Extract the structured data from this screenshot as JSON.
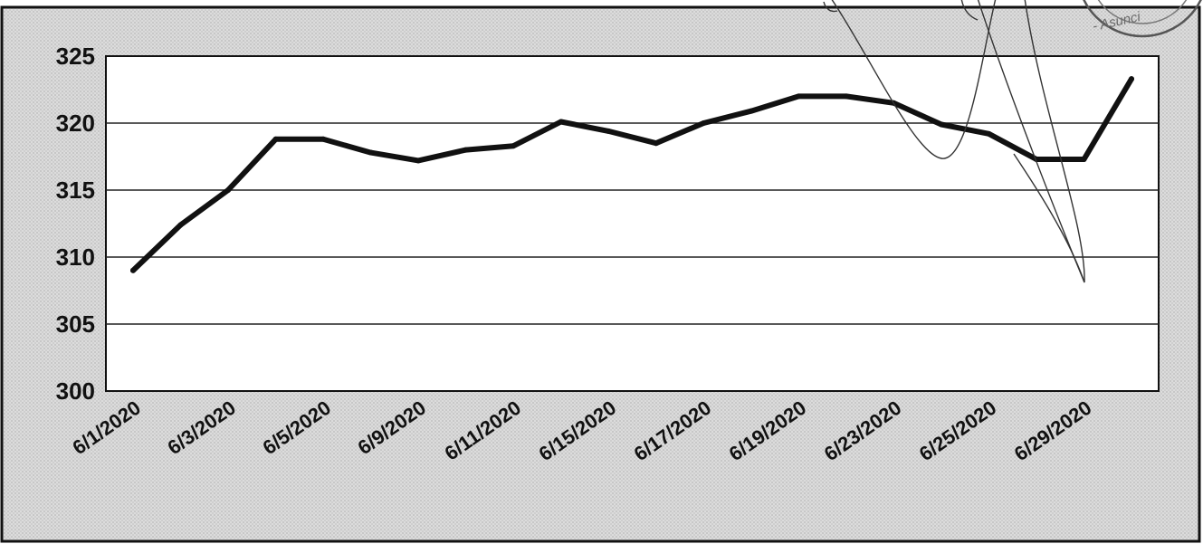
{
  "chart_data": {
    "type": "line",
    "title": "",
    "xlabel": "",
    "ylabel": "",
    "x": [
      "6/1/2020",
      "6/2/2020",
      "6/3/2020",
      "6/4/2020",
      "6/5/2020",
      "6/8/2020",
      "6/9/2020",
      "6/10/2020",
      "6/11/2020",
      "6/12/2020",
      "6/15/2020",
      "6/16/2020",
      "6/17/2020",
      "6/18/2020",
      "6/19/2020",
      "6/22/2020",
      "6/23/2020",
      "6/24/2020",
      "6/25/2020",
      "6/26/2020",
      "6/29/2020",
      "6/30/2020"
    ],
    "x_tick_labels": [
      "6/1/2020",
      "6/3/2020",
      "6/5/2020",
      "6/9/2020",
      "6/11/2020",
      "6/15/2020",
      "6/17/2020",
      "6/19/2020",
      "6/23/2020",
      "6/25/2020",
      "6/29/2020"
    ],
    "series": [
      {
        "values": [
          309.0,
          312.4,
          315.0,
          318.8,
          318.8,
          317.8,
          317.2,
          318.0,
          318.3,
          320.1,
          319.4,
          318.5,
          320.0,
          320.9,
          322.0,
          322.0,
          321.5,
          319.9,
          319.2,
          317.3,
          317.3,
          323.3
        ]
      }
    ],
    "ylim": [
      300,
      325
    ],
    "y_ticks": [
      300,
      305,
      310,
      315,
      320,
      325
    ],
    "grid": true,
    "legend": "none",
    "line_color": "#111111",
    "grid_color": "#222222",
    "plot_background": "#ffffff",
    "frame_background": "#e6e6e6"
  },
  "stamp": {
    "text": "- Asunci"
  }
}
